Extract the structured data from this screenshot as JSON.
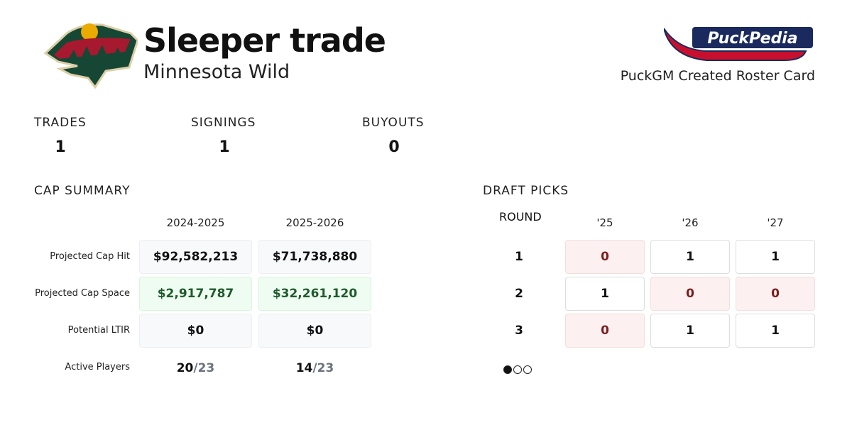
{
  "header": {
    "title": "Sleeper trade",
    "team": "Minnesota Wild",
    "brand_logo": "PuckPedia",
    "brand_caption": "PuckGM Created Roster Card"
  },
  "stats": [
    {
      "label": "TRADES",
      "value": "1"
    },
    {
      "label": "SIGNINGS",
      "value": "1"
    },
    {
      "label": "BUYOUTS",
      "value": "0"
    }
  ],
  "cap_summary": {
    "title": "CAP SUMMARY",
    "seasons": [
      "2024-2025",
      "2025-2026"
    ],
    "rows": [
      {
        "label": "Projected Cap Hit",
        "values": [
          "$92,582,213",
          "$71,738,880"
        ]
      },
      {
        "label": "Projected Cap Space",
        "values": [
          "$2,917,787",
          "$32,261,120"
        ]
      },
      {
        "label": "Potential LTIR",
        "values": [
          "$0",
          "$0"
        ]
      }
    ],
    "active_players": {
      "label": "Active Players",
      "values": [
        {
          "count": "20",
          "max": "/23"
        },
        {
          "count": "14",
          "max": "/23"
        }
      ]
    }
  },
  "draft_picks": {
    "title": "DRAFT PICKS",
    "round_label": "ROUND",
    "years": [
      "'25",
      "'26",
      "'27"
    ],
    "rounds": [
      {
        "round": "1",
        "picks": [
          "0",
          "1",
          "1"
        ]
      },
      {
        "round": "2",
        "picks": [
          "1",
          "0",
          "0"
        ]
      },
      {
        "round": "3",
        "picks": [
          "0",
          "1",
          "1"
        ]
      }
    ],
    "pagination": {
      "pages": 3,
      "active": 1
    }
  },
  "colors": {
    "wild_green": "#154734",
    "wild_red": "#a6192e",
    "wild_gold": "#eaaa00",
    "space_green": "#1e5b2b",
    "zero_red": "#7a1c1c"
  }
}
